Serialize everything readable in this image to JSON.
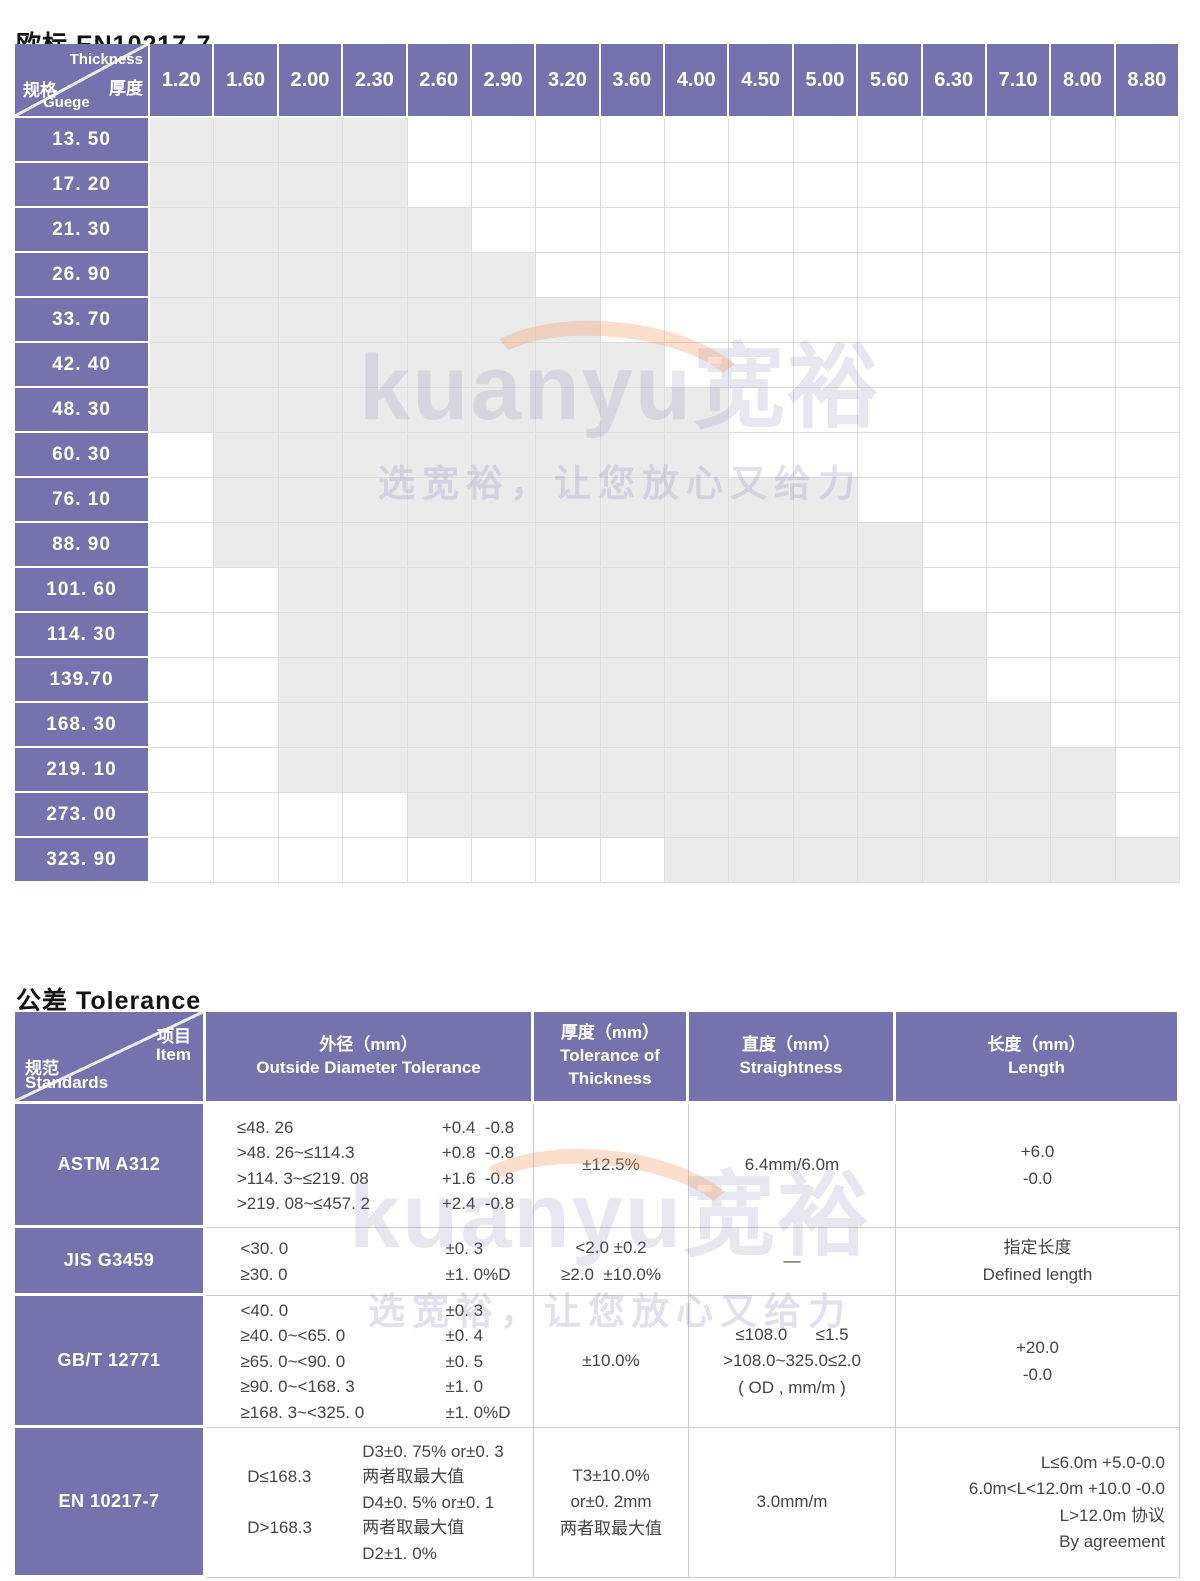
{
  "colors": {
    "purple": "#7473ae",
    "available_cell_gray": "#ebebeb",
    "grid_line": "#dddddd",
    "accent_orange": "#f3985f",
    "text_dark": "#454545"
  },
  "watermark": {
    "brand": "kuanyu宽裕",
    "slogan": "选宽裕，让您放心又给力"
  },
  "spec_table": {
    "title": "欧标 EN10217-7",
    "corner": {
      "thickness_en": "Thickness",
      "thickness_cn": "厚度",
      "gauge_cn": "规格",
      "gauge_en": "Guege"
    },
    "thickness_headers": [
      "1.20",
      "1.60",
      "2.00",
      "2.30",
      "2.60",
      "2.90",
      "3.20",
      "3.60",
      "4.00",
      "4.50",
      "5.00",
      "5.60",
      "6.30",
      "7.10",
      "8.00",
      "8.80"
    ],
    "rows": [
      {
        "gauge": "13. 50",
        "from": "1.20",
        "to": "2.30"
      },
      {
        "gauge": "17. 20",
        "from": "1.20",
        "to": "2.30"
      },
      {
        "gauge": "21. 30",
        "from": "1.20",
        "to": "2.60"
      },
      {
        "gauge": "26. 90",
        "from": "1.20",
        "to": "2.90"
      },
      {
        "gauge": "33. 70",
        "from": "1.20",
        "to": "3.20"
      },
      {
        "gauge": "42. 40",
        "from": "1.20",
        "to": "3.60"
      },
      {
        "gauge": "48. 30",
        "from": "1.20",
        "to": "4.00"
      },
      {
        "gauge": "60. 30",
        "from": "1.60",
        "to": "4.00"
      },
      {
        "gauge": "76. 10",
        "from": "1.60",
        "to": "5.00"
      },
      {
        "gauge": "88. 90",
        "from": "1.60",
        "to": "5.60"
      },
      {
        "gauge": "101. 60",
        "from": "2.00",
        "to": "5.60"
      },
      {
        "gauge": "114. 30",
        "from": "2.00",
        "to": "6.30"
      },
      {
        "gauge": "139.70",
        "from": "2.00",
        "to": "6.30"
      },
      {
        "gauge": "168. 30",
        "from": "2.00",
        "to": "7.10"
      },
      {
        "gauge": "219. 10",
        "from": "2.00",
        "to": "8.00"
      },
      {
        "gauge": "273. 00",
        "from": "2.60",
        "to": "8.00"
      },
      {
        "gauge": "323. 90",
        "from": "4.00",
        "to": "8.80"
      }
    ]
  },
  "tolerance_table": {
    "title": "公差 Tolerance",
    "corner": {
      "item_cn": "项目",
      "item_en": "Item",
      "standards_cn": "规范",
      "standards_en": "Standards"
    },
    "columns": [
      {
        "cn": "外径（mm）",
        "en": "Outside Diameter Tolerance"
      },
      {
        "cn": "厚度（mm）",
        "en": "Tolerance of Thickness"
      },
      {
        "cn": "直度（mm）",
        "en": "Straightness"
      },
      {
        "cn": "长度（mm）",
        "en": "Length"
      }
    ],
    "rows": [
      {
        "standard": "ASTM A312",
        "od_lines": [
          [
            "≤48. 26",
            "+0.4  -0.8"
          ],
          [
            ">48. 26~≤114.3",
            "+0.8  -0.8"
          ],
          [
            ">114. 3~≤219. 08",
            "+1.6  -0.8"
          ],
          [
            ">219. 08~≤457. 2",
            "+2.4  -0.8"
          ]
        ],
        "thickness": [
          "±12.5%"
        ],
        "straightness": [
          "6.4mm/6.0m"
        ],
        "length": [
          "+6.0",
          "-0.0"
        ]
      },
      {
        "standard": "JIS G3459",
        "od_lines": [
          [
            "<30. 0",
            "±0. 3"
          ],
          [
            "≥30. 0",
            "±1. 0%D"
          ]
        ],
        "thickness": [
          "<2.0 ±0.2",
          "≥2.0  ±10.0%"
        ],
        "straightness": [
          "—"
        ],
        "length": [
          "指定长度",
          "Defined length"
        ]
      },
      {
        "standard": "GB/T 12771",
        "od_lines": [
          [
            "<40. 0",
            "±0. 3"
          ],
          [
            "≥40. 0~<65. 0",
            "±0. 4"
          ],
          [
            "≥65. 0~<90. 0",
            "±0. 5"
          ],
          [
            "≥90. 0~<168. 3",
            "±1. 0"
          ],
          [
            "≥168. 3~<325. 0",
            "±1. 0%D"
          ]
        ],
        "thickness": [
          "±10.0%"
        ],
        "straightness": [
          "≤108.0      ≤1.5",
          ">108.0~325.0≤2.0",
          "( OD , mm/m )"
        ],
        "length": [
          "+20.0",
          "-0.0"
        ]
      },
      {
        "standard": "EN 10217-7",
        "od_lines": [
          [
            "",
            "D3±0. 75% or±0. 3"
          ],
          [
            "D≤168.3",
            "两者取最大值"
          ],
          [
            "",
            "D4±0. 5% or±0. 1"
          ],
          [
            "D>168.3",
            "两者取最大值"
          ],
          [
            "",
            "D2±1. 0%"
          ]
        ],
        "thickness": [
          "T3±10.0%",
          "or±0. 2mm",
          "两者取最大值"
        ],
        "straightness": [
          "3.0mm/m"
        ],
        "length": [
          "L≤6.0m +5.0-0.0",
          "6.0m<L<12.0m +10.0 -0.0",
          "L>12.0m 协议",
          "By agreement"
        ],
        "length_align": "right"
      }
    ]
  }
}
